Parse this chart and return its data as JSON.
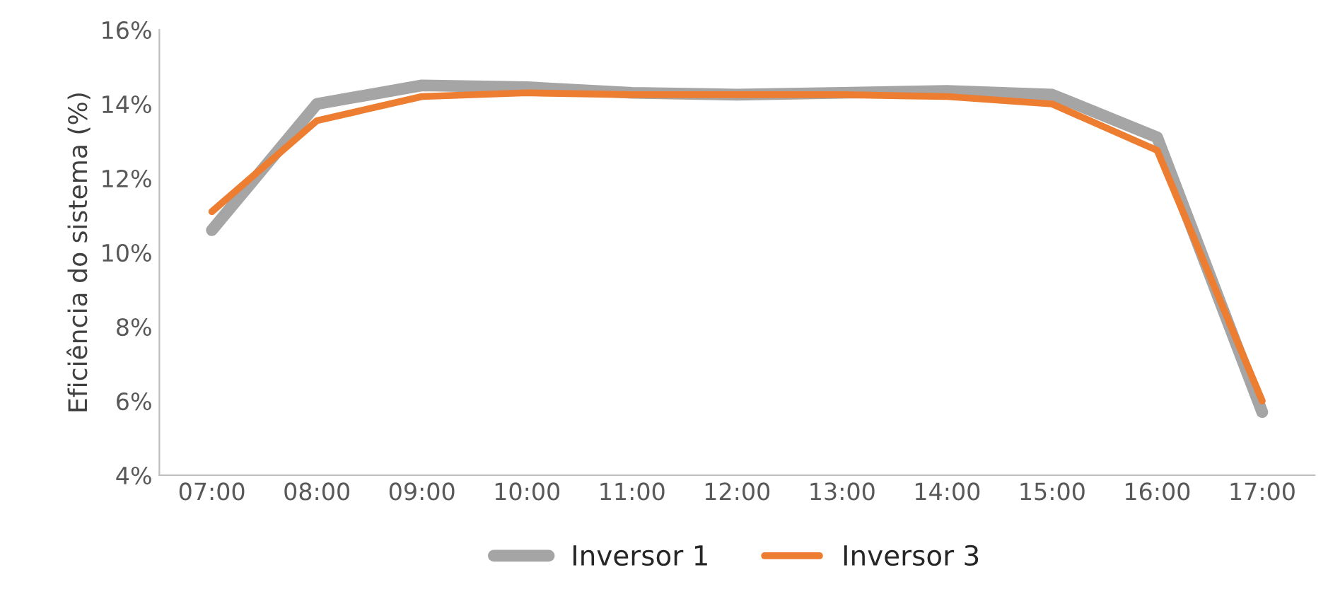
{
  "chart_data": {
    "type": "line",
    "ylabel": "Eficiência do sistema (%)",
    "categories": [
      "07:00",
      "08:00",
      "09:00",
      "10:00",
      "11:00",
      "12:00",
      "13:00",
      "14:00",
      "15:00",
      "16:00",
      "17:00"
    ],
    "series": [
      {
        "name": "Inversor 1",
        "color": "#a5a5a5",
        "values": [
          10.6,
          14.0,
          14.5,
          14.45,
          14.3,
          14.25,
          14.3,
          14.35,
          14.25,
          13.1,
          5.7
        ]
      },
      {
        "name": "Inversor 3",
        "color": "#ed7d31",
        "values": [
          11.1,
          13.55,
          14.2,
          14.3,
          14.25,
          14.25,
          14.25,
          14.2,
          14.0,
          12.75,
          6.0
        ]
      }
    ],
    "ylim": [
      4,
      16
    ],
    "yticks": [
      {
        "value": 4,
        "label": "4%"
      },
      {
        "value": 6,
        "label": "6%"
      },
      {
        "value": 8,
        "label": "8%"
      },
      {
        "value": 10,
        "label": "10%"
      },
      {
        "value": 12,
        "label": "12%"
      },
      {
        "value": 14,
        "label": "14%"
      },
      {
        "value": 16,
        "label": "16%"
      }
    ],
    "grid": false,
    "legend": "bottom",
    "marker": "none",
    "line_style": "solid"
  }
}
